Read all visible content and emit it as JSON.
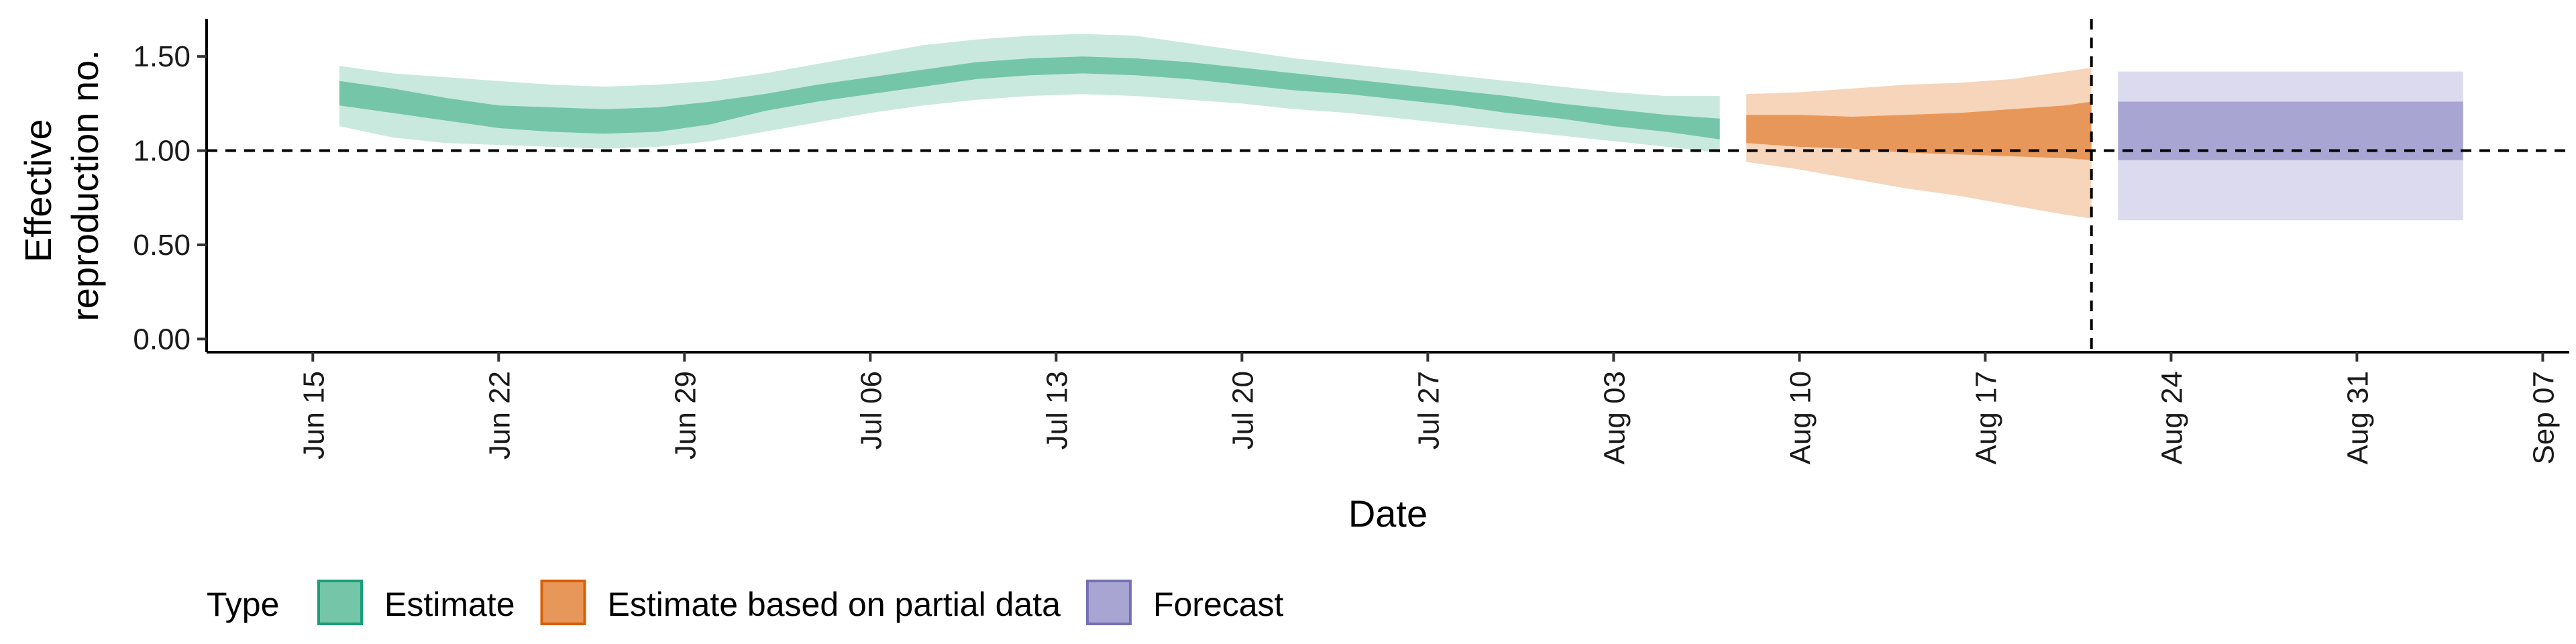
{
  "chart_data": {
    "type": "area",
    "x_axis": {
      "label": "Date",
      "range": [
        "2020-06-11",
        "2020-09-08"
      ],
      "ticks": [
        "2020-06-15",
        "2020-06-22",
        "2020-06-29",
        "2020-07-06",
        "2020-07-13",
        "2020-07-20",
        "2020-07-27",
        "2020-08-03",
        "2020-08-10",
        "2020-08-17",
        "2020-08-24",
        "2020-08-31",
        "2020-09-07"
      ],
      "tick_labels": [
        "Jun 15",
        "Jun 22",
        "Jun 29",
        "Jul 06",
        "Jul 13",
        "Jul 20",
        "Jul 27",
        "Aug 03",
        "Aug 10",
        "Aug 17",
        "Aug 24",
        "Aug 31",
        "Sep 07"
      ]
    },
    "y_axis": {
      "label": "Effective reproduction no.",
      "label_lines": [
        "Effective",
        "reproduction no."
      ],
      "range": [
        -0.07,
        1.7
      ],
      "ticks": [
        0,
        0.5,
        1,
        1.5
      ],
      "tick_labels": [
        "0.00",
        "0.50",
        "1.00",
        "1.50"
      ]
    },
    "reference_lines": {
      "horizontal_y": 1.0,
      "vertical_x": "2020-08-21"
    },
    "legend": {
      "title": "Type",
      "position": "bottom",
      "entries": [
        {
          "label": "Estimate",
          "fill": "#75c5a9",
          "border": "#1b9e77"
        },
        {
          "label": "Estimate based on partial data",
          "fill": "#e8975a",
          "border": "#d95f02"
        },
        {
          "label": "Forecast",
          "fill": "#a9a5d2",
          "border": "#7570b3"
        }
      ]
    },
    "series": [
      {
        "name": "Estimate",
        "inner_color": "#75c5a9",
        "outer_color": "#c9e9de",
        "points": [
          {
            "x": "2020-06-16",
            "lo90": 1.13,
            "lo50": 1.24,
            "hi50": 1.37,
            "hi90": 1.45
          },
          {
            "x": "2020-06-18",
            "lo90": 1.07,
            "lo50": 1.2,
            "hi50": 1.33,
            "hi90": 1.41
          },
          {
            "x": "2020-06-20",
            "lo90": 1.04,
            "lo50": 1.16,
            "hi50": 1.28,
            "hi90": 1.39
          },
          {
            "x": "2020-06-22",
            "lo90": 1.03,
            "lo50": 1.12,
            "hi50": 1.24,
            "hi90": 1.37
          },
          {
            "x": "2020-06-24",
            "lo90": 1.02,
            "lo50": 1.1,
            "hi50": 1.23,
            "hi90": 1.35
          },
          {
            "x": "2020-06-26",
            "lo90": 1.01,
            "lo50": 1.09,
            "hi50": 1.22,
            "hi90": 1.34
          },
          {
            "x": "2020-06-28",
            "lo90": 1.02,
            "lo50": 1.1,
            "hi50": 1.23,
            "hi90": 1.35
          },
          {
            "x": "2020-06-30",
            "lo90": 1.05,
            "lo50": 1.14,
            "hi50": 1.26,
            "hi90": 1.37
          },
          {
            "x": "2020-07-02",
            "lo90": 1.1,
            "lo50": 1.21,
            "hi50": 1.3,
            "hi90": 1.41
          },
          {
            "x": "2020-07-04",
            "lo90": 1.15,
            "lo50": 1.26,
            "hi50": 1.35,
            "hi90": 1.46
          },
          {
            "x": "2020-07-06",
            "lo90": 1.2,
            "lo50": 1.3,
            "hi50": 1.39,
            "hi90": 1.51
          },
          {
            "x": "2020-07-08",
            "lo90": 1.24,
            "lo50": 1.34,
            "hi50": 1.43,
            "hi90": 1.56
          },
          {
            "x": "2020-07-10",
            "lo90": 1.27,
            "lo50": 1.38,
            "hi50": 1.47,
            "hi90": 1.59
          },
          {
            "x": "2020-07-12",
            "lo90": 1.29,
            "lo50": 1.4,
            "hi50": 1.49,
            "hi90": 1.61
          },
          {
            "x": "2020-07-14",
            "lo90": 1.3,
            "lo50": 1.41,
            "hi50": 1.5,
            "hi90": 1.62
          },
          {
            "x": "2020-07-16",
            "lo90": 1.29,
            "lo50": 1.4,
            "hi50": 1.49,
            "hi90": 1.61
          },
          {
            "x": "2020-07-18",
            "lo90": 1.27,
            "lo50": 1.38,
            "hi50": 1.47,
            "hi90": 1.57
          },
          {
            "x": "2020-07-20",
            "lo90": 1.25,
            "lo50": 1.35,
            "hi50": 1.44,
            "hi90": 1.53
          },
          {
            "x": "2020-07-22",
            "lo90": 1.22,
            "lo50": 1.32,
            "hi50": 1.41,
            "hi90": 1.49
          },
          {
            "x": "2020-07-24",
            "lo90": 1.2,
            "lo50": 1.3,
            "hi50": 1.38,
            "hi90": 1.46
          },
          {
            "x": "2020-07-26",
            "lo90": 1.17,
            "lo50": 1.27,
            "hi50": 1.35,
            "hi90": 1.43
          },
          {
            "x": "2020-07-28",
            "lo90": 1.14,
            "lo50": 1.24,
            "hi50": 1.32,
            "hi90": 1.4
          },
          {
            "x": "2020-07-30",
            "lo90": 1.11,
            "lo50": 1.2,
            "hi50": 1.29,
            "hi90": 1.37
          },
          {
            "x": "2020-08-01",
            "lo90": 1.08,
            "lo50": 1.17,
            "hi50": 1.25,
            "hi90": 1.34
          },
          {
            "x": "2020-08-03",
            "lo90": 1.05,
            "lo50": 1.13,
            "hi50": 1.22,
            "hi90": 1.31
          },
          {
            "x": "2020-08-05",
            "lo90": 1.02,
            "lo50": 1.1,
            "hi50": 1.19,
            "hi90": 1.29
          },
          {
            "x": "2020-08-07",
            "lo90": 0.99,
            "lo50": 1.06,
            "hi50": 1.17,
            "hi90": 1.29
          }
        ]
      },
      {
        "name": "Estimate based on partial data",
        "inner_color": "#e8975a",
        "outer_color": "#f6d5bb",
        "points": [
          {
            "x": "2020-08-08",
            "lo90": 0.94,
            "lo50": 1.04,
            "hi50": 1.19,
            "hi90": 1.3
          },
          {
            "x": "2020-08-10",
            "lo90": 0.9,
            "lo50": 1.02,
            "hi50": 1.19,
            "hi90": 1.31
          },
          {
            "x": "2020-08-12",
            "lo90": 0.85,
            "lo50": 1.01,
            "hi50": 1.18,
            "hi90": 1.33
          },
          {
            "x": "2020-08-14",
            "lo90": 0.8,
            "lo50": 0.99,
            "hi50": 1.19,
            "hi90": 1.35
          },
          {
            "x": "2020-08-16",
            "lo90": 0.76,
            "lo50": 0.98,
            "hi50": 1.2,
            "hi90": 1.36
          },
          {
            "x": "2020-08-18",
            "lo90": 0.71,
            "lo50": 0.97,
            "hi50": 1.22,
            "hi90": 1.38
          },
          {
            "x": "2020-08-20",
            "lo90": 0.66,
            "lo50": 0.96,
            "hi50": 1.24,
            "hi90": 1.42
          },
          {
            "x": "2020-08-21",
            "lo90": 0.64,
            "lo50": 0.95,
            "hi50": 1.26,
            "hi90": 1.44
          }
        ]
      },
      {
        "name": "Forecast",
        "inner_color": "#a9a5d2",
        "outer_color": "#dcdaee",
        "points": [
          {
            "x": "2020-08-22",
            "lo90": 0.63,
            "lo50": 0.95,
            "hi50": 1.26,
            "hi90": 1.42
          },
          {
            "x": "2020-09-04",
            "lo90": 0.63,
            "lo50": 0.95,
            "hi50": 1.26,
            "hi90": 1.42
          }
        ]
      }
    ]
  }
}
